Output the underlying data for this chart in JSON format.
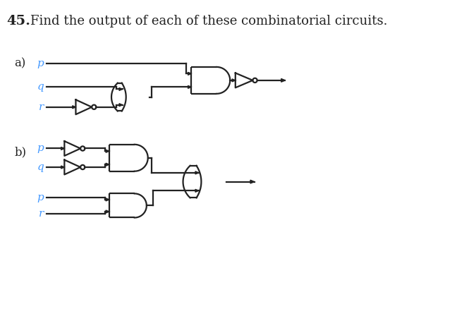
{
  "title_num": "45.",
  "title_text": "Find the output of each of these combinatorial circuits.",
  "label_color": "#4499ff",
  "line_color": "#222222",
  "bg_color": "#ffffff",
  "fig_width": 6.58,
  "fig_height": 4.38,
  "dpi": 100,
  "a_label": "a)",
  "b_label": "b)",
  "inputs_a": [
    "p",
    "q",
    "r"
  ],
  "inputs_b": [
    "p",
    "q",
    "p",
    "r"
  ]
}
